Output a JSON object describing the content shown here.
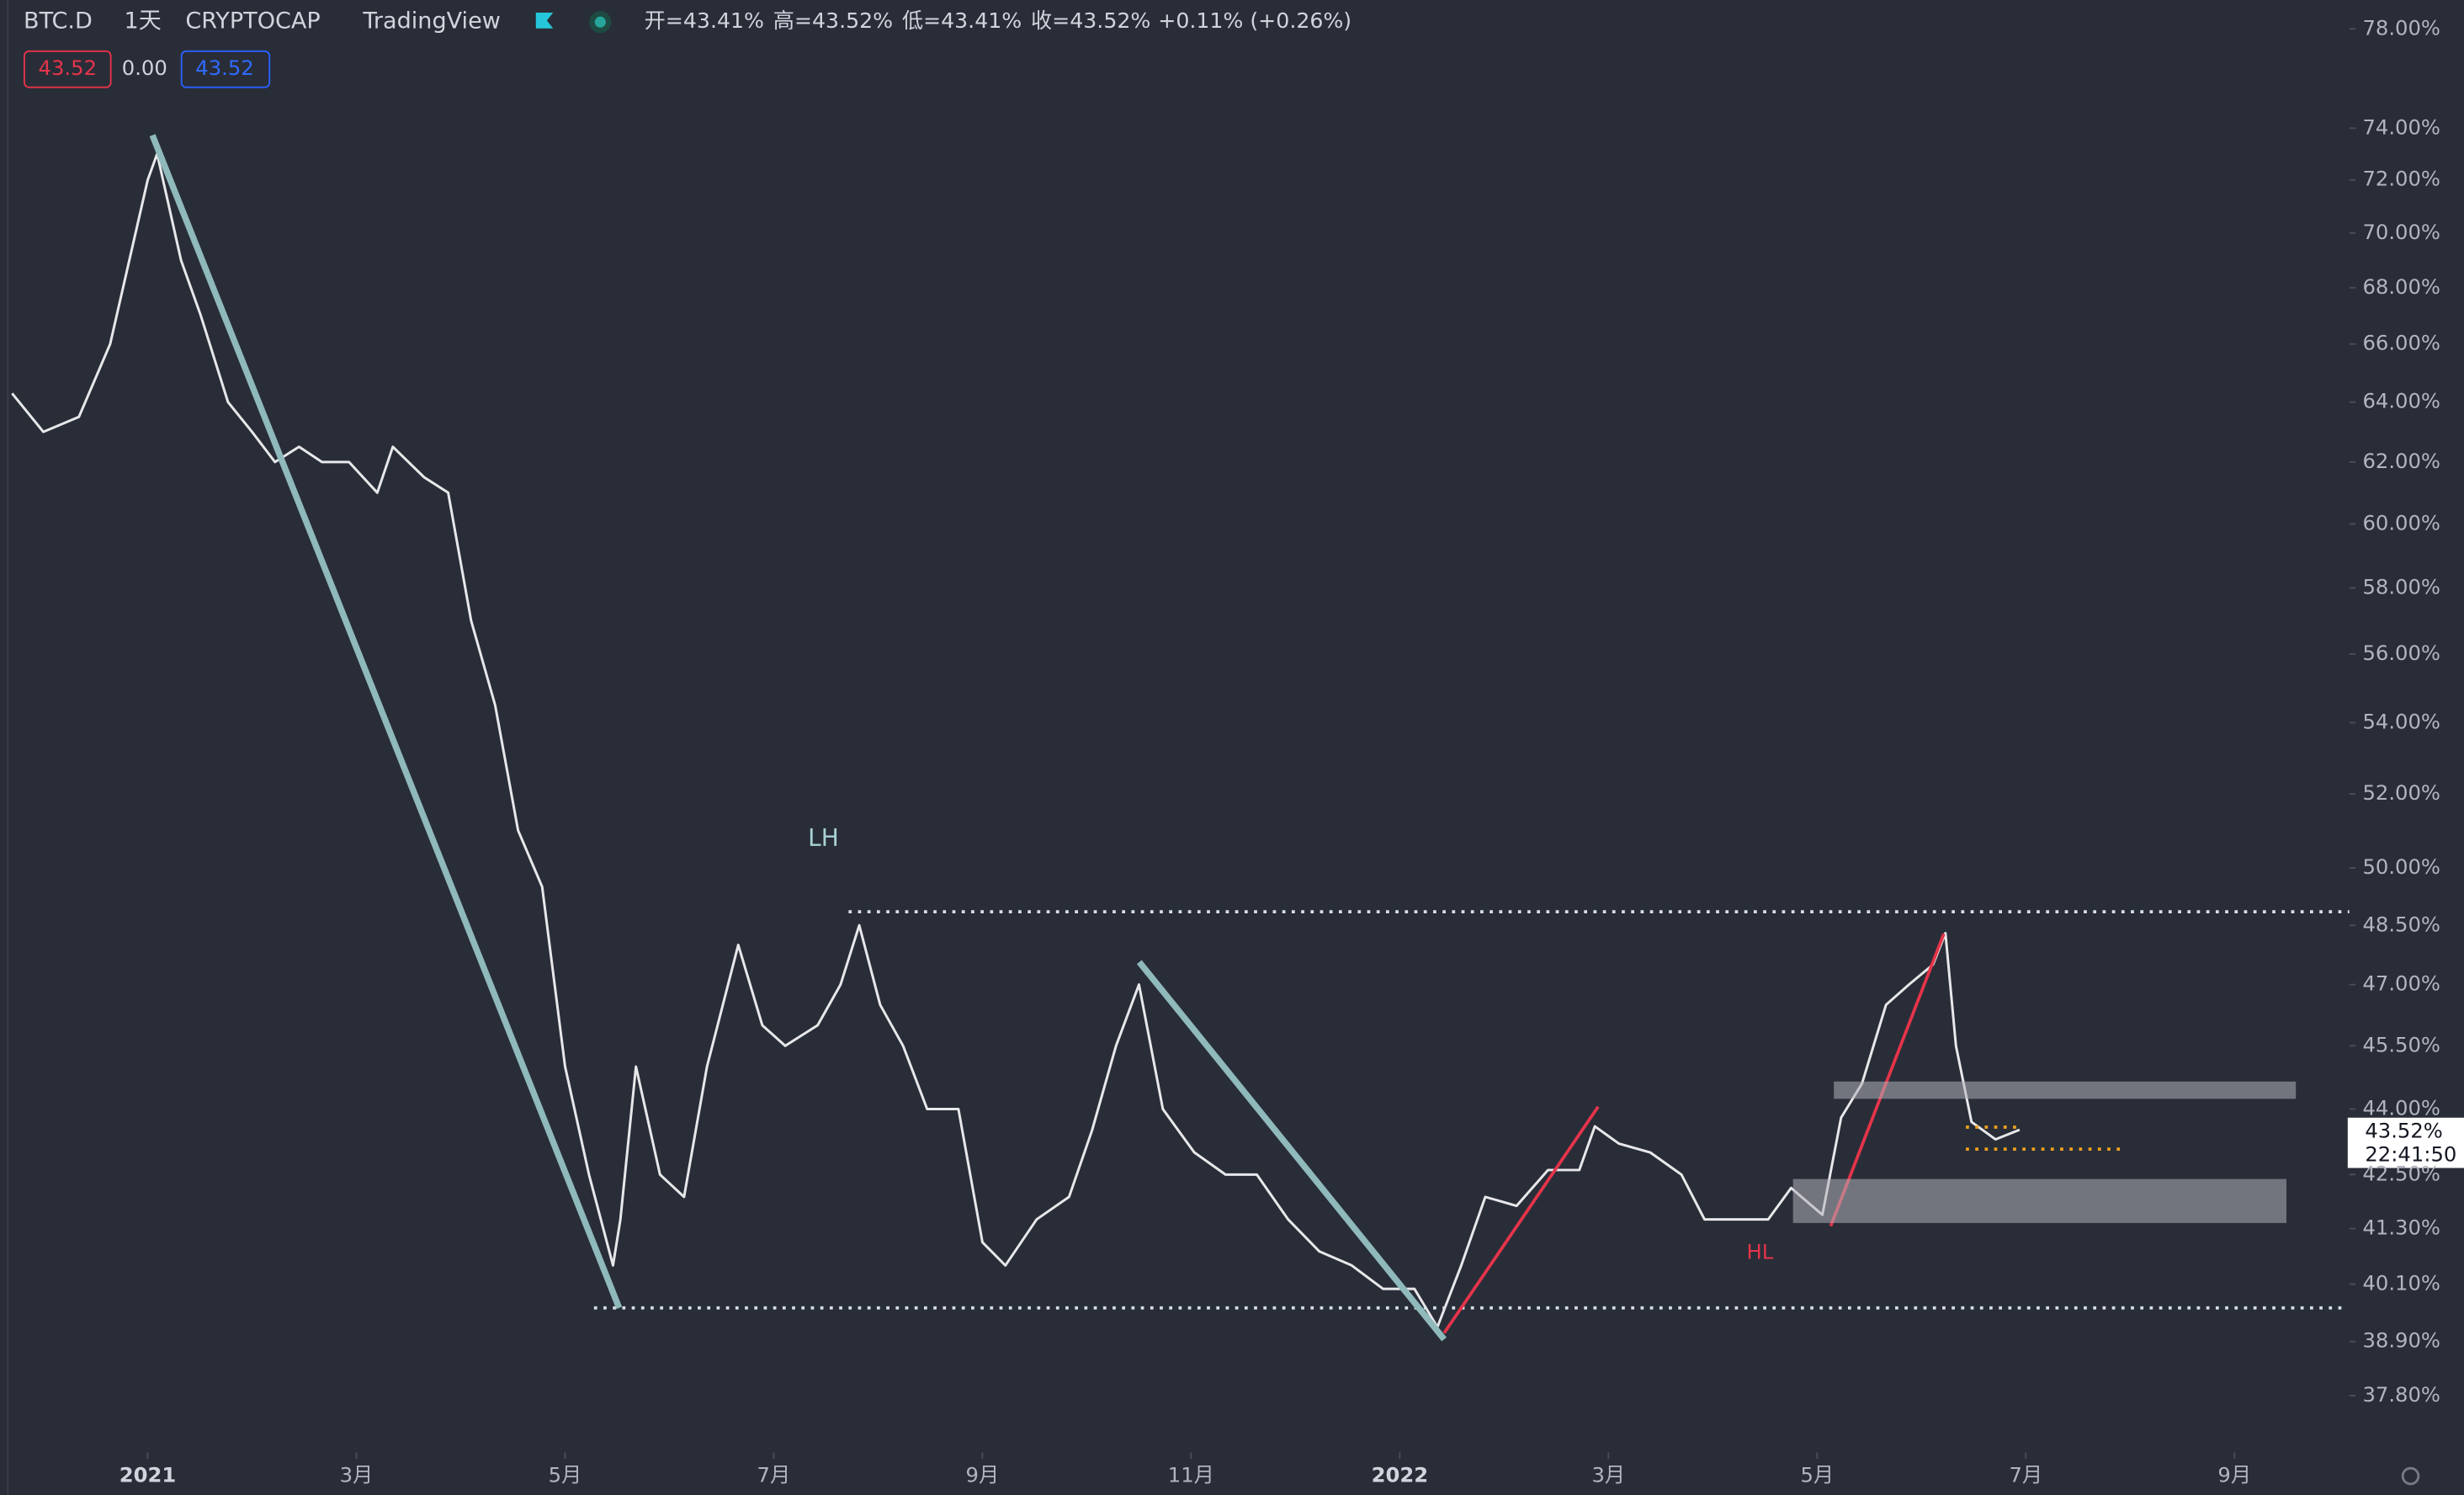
{
  "chart_data": {
    "type": "line",
    "header": {
      "symbol": "BTC.D",
      "interval": "1天",
      "exchange": "CRYPTOCAP",
      "source": "TradingView",
      "open": "开=43.41%",
      "high": "高=43.52%",
      "low": "低=43.41%",
      "close": "收=43.52%",
      "change": "+0.11% (+0.26%)"
    },
    "badges": [
      "43.52",
      "0.00",
      "43.52"
    ],
    "annotations": [
      "LH",
      "HL"
    ],
    "price_label": "43.52%",
    "countdown": "22:41:50",
    "ylog": true,
    "ylim": [
      79.2,
      36.8
    ],
    "yticks": [
      {
        "value": 78,
        "label": "78.00%"
      },
      {
        "value": 74,
        "label": "74.00%"
      },
      {
        "value": 72,
        "label": "72.00%"
      },
      {
        "value": 70,
        "label": "70.00%"
      },
      {
        "value": 68,
        "label": "68.00%"
      },
      {
        "value": 66,
        "label": "66.00%"
      },
      {
        "value": 64,
        "label": "64.00%"
      },
      {
        "value": 62,
        "label": "62.00%"
      },
      {
        "value": 60,
        "label": "60.00%"
      },
      {
        "value": 58,
        "label": "58.00%"
      },
      {
        "value": 56,
        "label": "56.00%"
      },
      {
        "value": 54,
        "label": "54.00%"
      },
      {
        "value": 52,
        "label": "52.00%"
      },
      {
        "value": 50,
        "label": "50.00%"
      },
      {
        "value": 48.5,
        "label": "48.50%"
      },
      {
        "value": 47,
        "label": "47.00%"
      },
      {
        "value": 45.5,
        "label": "45.50%"
      },
      {
        "value": 44,
        "label": "44.00%"
      },
      {
        "value": 42.5,
        "label": "42.50%"
      },
      {
        "value": 41.3,
        "label": "41.30%"
      },
      {
        "value": 40.1,
        "label": "40.10%"
      },
      {
        "value": 38.9,
        "label": "38.90%"
      },
      {
        "value": 37.8,
        "label": "37.80%"
      }
    ],
    "xlim": [
      -1.34,
      21.1
    ],
    "xticks": [
      {
        "value": 0,
        "label": "2021"
      },
      {
        "value": 2,
        "label": "3月"
      },
      {
        "value": 4,
        "label": "5月"
      },
      {
        "value": 6,
        "label": "7月"
      },
      {
        "value": 8,
        "label": "9月"
      },
      {
        "value": 10,
        "label": "11月"
      },
      {
        "value": 12,
        "label": "2022"
      },
      {
        "value": 14,
        "label": "3月"
      },
      {
        "value": 16,
        "label": "5月"
      },
      {
        "value": 18,
        "label": "7月"
      },
      {
        "value": 20,
        "label": "9月"
      }
    ],
    "series": [
      {
        "color": "#e8e8ea",
        "x": [
          -1.3,
          -1.0,
          -0.66,
          -0.36,
          0,
          0.09,
          0.32,
          0.51,
          0.77,
          1.0,
          1.22,
          1.45,
          1.67,
          1.93,
          2.2,
          2.35,
          2.65,
          2.88,
          3.1,
          3.33,
          3.55,
          3.78,
          4.0,
          4.23,
          4.46,
          4.53,
          4.68,
          4.91,
          5.14,
          5.36,
          5.66,
          5.89,
          6.11,
          6.42,
          6.64,
          6.82,
          7.02,
          7.24,
          7.47,
          7.77,
          8.0,
          8.22,
          8.52,
          8.83,
          9.05,
          9.28,
          9.5,
          9.73,
          10.03,
          10.33,
          10.63,
          10.93,
          11.23,
          11.54,
          11.84,
          12.14,
          12.36,
          12.59,
          12.82,
          13.12,
          13.42,
          13.72,
          13.87,
          14.1,
          14.4,
          14.7,
          14.92,
          15.23,
          15.53,
          15.75,
          16.05,
          16.23,
          16.43,
          16.66,
          16.88,
          17.11,
          17.23,
          17.33,
          17.48,
          17.71,
          17.94
        ],
        "values": [
          64.3,
          63,
          63.5,
          66,
          72,
          73,
          69,
          67,
          64,
          63,
          62,
          62.5,
          62,
          62,
          61,
          62.5,
          61.5,
          61,
          57,
          54.5,
          51,
          49.5,
          45,
          42.5,
          40.5,
          41.5,
          45,
          42.5,
          42,
          45,
          48,
          46,
          45.5,
          46,
          47,
          48.5,
          46.5,
          45.5,
          44,
          44,
          41,
          40.5,
          41.5,
          42,
          43.5,
          45.5,
          47,
          44,
          43,
          42.5,
          42.5,
          41.5,
          40.8,
          40.5,
          40,
          40,
          39.2,
          40.5,
          42,
          41.8,
          42.6,
          42.6,
          43.6,
          43.2,
          43,
          42.5,
          41.5,
          41.5,
          41.5,
          42.2,
          41.6,
          43.8,
          44.6,
          46.5,
          47,
          47.5,
          48.3,
          45.5,
          43.7,
          43.3,
          43.52
        ]
      }
    ]
  }
}
